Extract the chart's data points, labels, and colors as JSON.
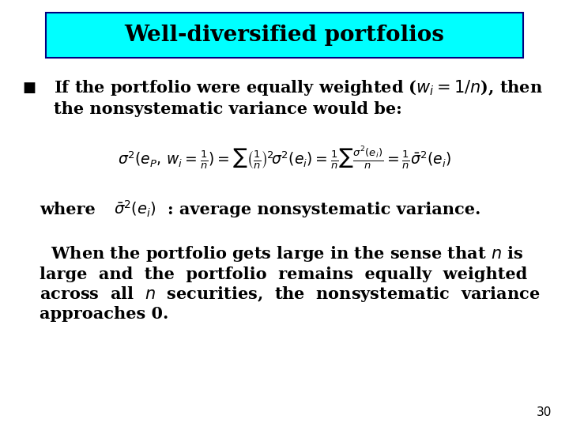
{
  "title": "Well-diversified portfolios",
  "title_bg_color": "#00FFFF",
  "title_border_color": "#000080",
  "bg_color": "#FFFFFF",
  "text_color": "#000000",
  "title_fontsize": 20,
  "body_fontsize": 15,
  "page_number": "30",
  "bullet": "■",
  "line1": "If the portfolio were equally weighted ($w_i = 1/n$), then",
  "line2": "the nonsystematic variance would be:",
  "where_text": "where",
  "where_rest": ": average nonsystematic variance.",
  "para1": "  When the portfolio gets large in the sense that $n$ is",
  "para2": "large  and  the  portfolio  remains  equally  weighted",
  "para3": "across  all  $n$  securities,  the  nonsystematic  variance",
  "para4": "approaches 0."
}
